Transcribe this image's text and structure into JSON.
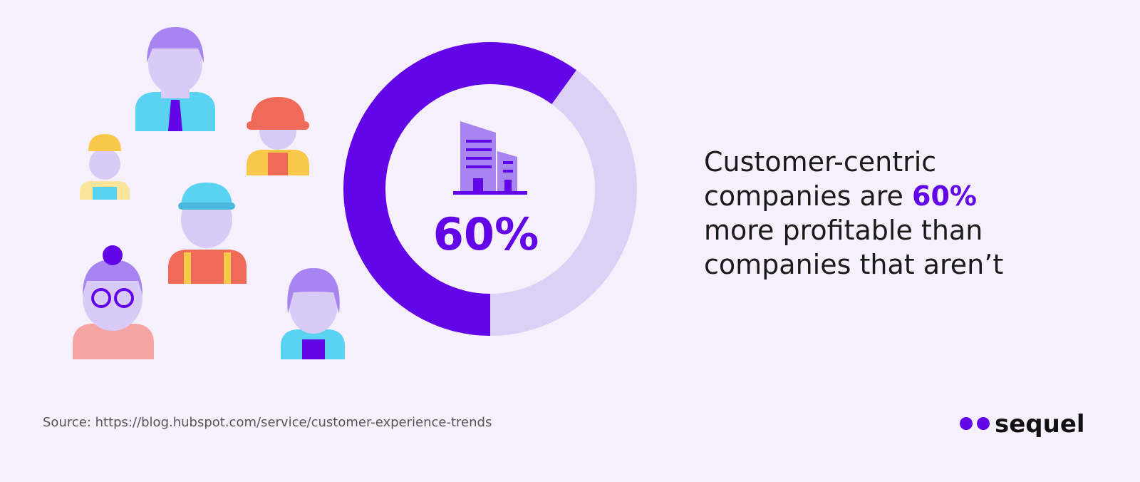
{
  "chart_data": {
    "type": "donut",
    "values": [
      60,
      40
    ],
    "value_labels": [
      "60%",
      null
    ],
    "colors": [
      "#6206e8",
      "#ddd0f6"
    ],
    "statement": [
      [
        "Customer-centric"
      ],
      [
        "companies are ",
        "60%"
      ],
      [
        "more profitable than"
      ],
      [
        "companies that aren’t"
      ]
    ],
    "highlight_color": "#6206e8",
    "source": "Source: https://blog.hubspot.com/service/customer-experience-trends",
    "brand": "sequel"
  }
}
